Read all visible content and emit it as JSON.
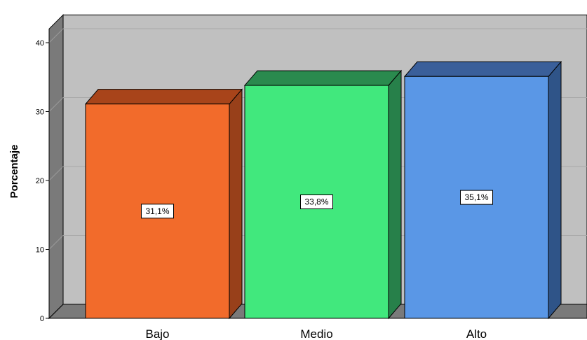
{
  "chart_data": {
    "type": "bar",
    "title": "",
    "xlabel": "",
    "ylabel": "Porcentaje",
    "categories": [
      "Bajo",
      "Medio",
      "Alto"
    ],
    "values": [
      31.1,
      33.8,
      35.1
    ],
    "data_labels": [
      "31,1%",
      "33,8%",
      "35,1%"
    ],
    "y_ticks": [
      0,
      10,
      20,
      30,
      40
    ],
    "ylim": [
      0,
      42
    ],
    "grid": true,
    "three_d": true,
    "colors": {
      "bars": [
        "#f26b2b",
        "#41e87d",
        "#5a97e6"
      ],
      "bar_tops": [
        "#a8441a",
        "#2a8a4e",
        "#3a5f9a"
      ],
      "bar_sides": [
        "#98401a",
        "#27804a",
        "#2f5488"
      ],
      "back_wall": "#c0c0c0",
      "walls_dark": "#7a7a7a",
      "gridline": "#a8a8a8"
    }
  }
}
